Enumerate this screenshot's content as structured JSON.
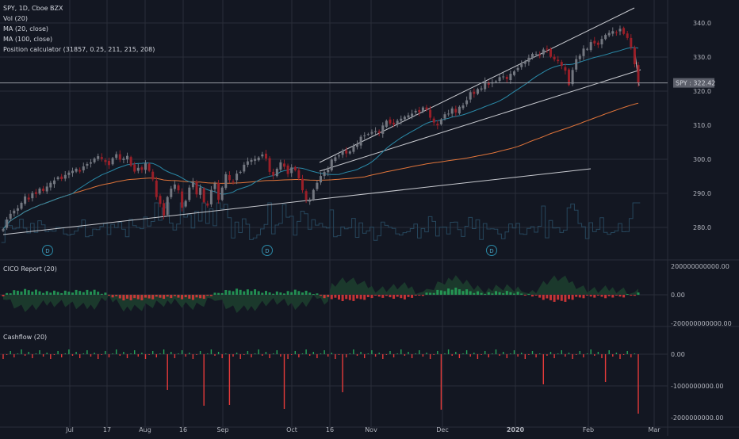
{
  "legend": {
    "title": "SPY, 1D, Cboe BZX",
    "vol": "Vol (20)",
    "ma20": "MA (20, close)",
    "ma100": "MA (100, close)",
    "position": "Position calculator (31857, 0.25, 211, 215, 208)"
  },
  "price_badge": {
    "symbol": "SPY",
    "value": "322.42"
  },
  "colors": {
    "background": "#131722",
    "grid": "#2a2e39",
    "up": "#737780",
    "down": "#9a1f28",
    "ma20": "#2a8aa8",
    "ma100": "#e0743a",
    "channel": "#c8cad0",
    "volume": "#26465c",
    "cico_pos": "#1f4f38",
    "cico_neg": "#5a2a32",
    "bar_pos": "#26a65b",
    "bar_neg": "#e53a3a",
    "axis_text": "#b2b5be"
  },
  "dividend_marker": "D",
  "chart_data": [
    {
      "type": "candlestick",
      "title": "SPY, 1D, Cboe BZX",
      "ylim": [
        270,
        345
      ],
      "yticks": [
        "280.0",
        "290.0",
        "300.0",
        "310.0",
        "320.0",
        "330.0",
        "340.0"
      ],
      "last_price": 322.42,
      "series": [
        {
          "name": "MA (20, close)"
        },
        {
          "name": "MA (100, close)"
        },
        {
          "name": "Vol (20)"
        }
      ],
      "closes": [
        279.5,
        282.3,
        284,
        284.9,
        285.6,
        287.2,
        289.1,
        288.2,
        290.1,
        289.8,
        291.4,
        290.7,
        292,
        293.1,
        293.8,
        294.7,
        294.2,
        295.4,
        296.1,
        296.6,
        297.2,
        296.4,
        297.9,
        298.6,
        299.1,
        300.2,
        300.9,
        300.1,
        299.2,
        298.3,
        300.3,
        301.5,
        299.9,
        300.2,
        301,
        298.1,
        296.4,
        297.5,
        296.9,
        298.8,
        296.6,
        294.1,
        288.9,
        286.9,
        283.5,
        288.9,
        291.4,
        292.6,
        290.9,
        285.8,
        287.8,
        291.7,
        293.4,
        289.7,
        291.7,
        287.4,
        286.4,
        291,
        292.9,
        288.1,
        291.7,
        295.6,
        293.9,
        293.5,
        295.8,
        296.3,
        298.4,
        299.4,
        299.8,
        300.1,
        300.5,
        301.4,
        300.2,
        296.3,
        295.2,
        297.2,
        299.1,
        297.8,
        295.7,
        297.6,
        296.8,
        294.4,
        290.9,
        288.1,
        287.8,
        291,
        293.1,
        295.1,
        296.3,
        297,
        299.9,
        300.6,
        301.1,
        302.5,
        301.7,
        302.3,
        303.9,
        304.4,
        306.6,
        307,
        307.4,
        308,
        308.3,
        307.7,
        309.9,
        311.3,
        310.5,
        310.2,
        311.3,
        311.9,
        312.5,
        312.9,
        313.4,
        314.2,
        313.8,
        315.2,
        314.6,
        312.2,
        310.8,
        309.9,
        311.7,
        313.2,
        313.4,
        314.9,
        313.7,
        315.4,
        315.8,
        317.3,
        319.7,
        319.2,
        320.6,
        320.8,
        322.9,
        321.9,
        322.6,
        322.9,
        324.1,
        324.3,
        323.5,
        325.1,
        325.8,
        326.8,
        327.9,
        328.6,
        329.8,
        330.9,
        330.9,
        330.4,
        332.2,
        332.3,
        330.1,
        329.3,
        328.8,
        327.4,
        326,
        321.8,
        326.2,
        329.4,
        330.4,
        332.5,
        332.4,
        334.4,
        334,
        333.6,
        335.3,
        336.5,
        337.1,
        337.6,
        337.2,
        338.3,
        336.8,
        335.6,
        332.9,
        327.9,
        322.4
      ]
    },
    {
      "type": "area",
      "title": "CICO Report (20)",
      "yticks": [
        "200000000000.00",
        "0.00",
        "-200000000000.00"
      ]
    },
    {
      "type": "bar",
      "title": "Cashflow (20)",
      "yticks": [
        "0.00",
        "-1000000000.00",
        "-2000000000.00"
      ]
    }
  ],
  "xaxis": [
    "Jul",
    "17",
    "Aug",
    "16",
    "Sep",
    "Oct",
    "16",
    "Nov",
    "Dec",
    "2020",
    "Feb",
    "Mar"
  ]
}
